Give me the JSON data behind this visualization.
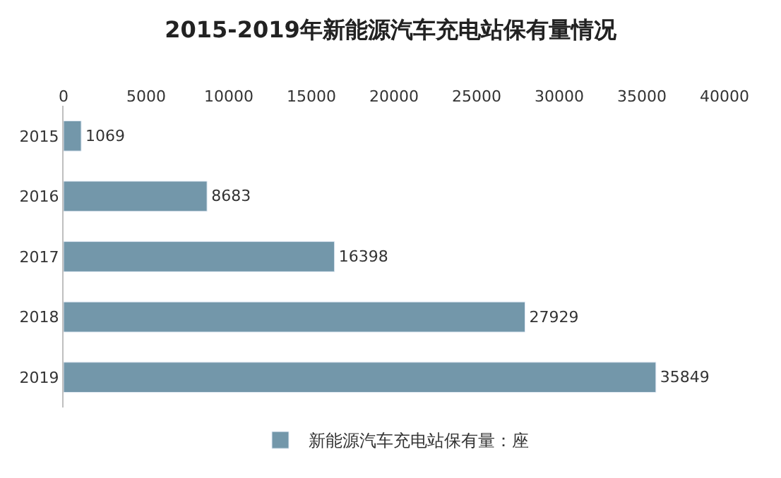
{
  "chart_data": {
    "type": "bar",
    "orientation": "horizontal",
    "title": "2015-2019年新能源汽车充电站保有量情况",
    "categories": [
      "2015",
      "2016",
      "2017",
      "2018",
      "2019"
    ],
    "series": [
      {
        "name": "新能源汽车充电站保有量：座",
        "color": "#7397aa",
        "values": [
          1069,
          8683,
          16398,
          27929,
          35849
        ]
      }
    ],
    "xlim": [
      0,
      40000
    ],
    "xticks": [
      0,
      5000,
      10000,
      15000,
      20000,
      25000,
      30000,
      35000,
      40000
    ],
    "data_labels": true,
    "legend": "bottom",
    "grid": false
  }
}
